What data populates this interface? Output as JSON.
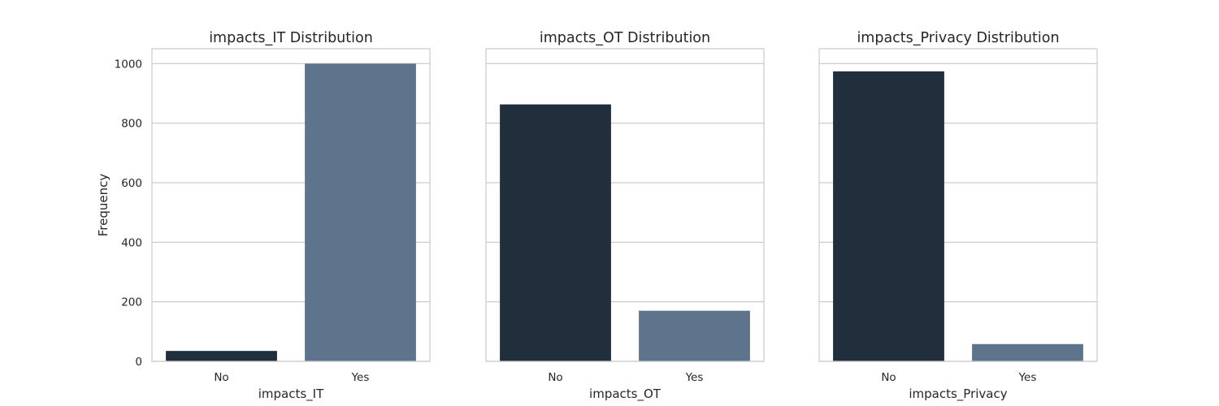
{
  "chart_data": [
    {
      "type": "bar",
      "title": "impacts_IT Distribution",
      "xlabel": "impacts_IT",
      "ylabel": "Frequency",
      "categories": [
        "No",
        "Yes"
      ],
      "values": [
        35,
        1000
      ],
      "colors": [
        "#212e3c",
        "#5e748c"
      ],
      "ylim": [
        0,
        1050
      ],
      "yticks": [
        0,
        200,
        400,
        600,
        800,
        1000
      ],
      "grid": "horizontal",
      "show_ytick_labels": true
    },
    {
      "type": "bar",
      "title": "impacts_OT Distribution",
      "xlabel": "impacts_OT",
      "ylabel": "",
      "categories": [
        "No",
        "Yes"
      ],
      "values": [
        863,
        170
      ],
      "colors": [
        "#212e3c",
        "#5e748c"
      ],
      "ylim": [
        0,
        1050
      ],
      "yticks": [
        0,
        200,
        400,
        600,
        800,
        1000
      ],
      "grid": "horizontal",
      "show_ytick_labels": false
    },
    {
      "type": "bar",
      "title": "impacts_Privacy Distribution",
      "xlabel": "impacts_Privacy",
      "ylabel": "",
      "categories": [
        "No",
        "Yes"
      ],
      "values": [
        974,
        58
      ],
      "colors": [
        "#212e3c",
        "#5e748c"
      ],
      "ylim": [
        0,
        1050
      ],
      "yticks": [
        0,
        200,
        400,
        600,
        800,
        1000
      ],
      "grid": "horizontal",
      "show_ytick_labels": false
    }
  ]
}
